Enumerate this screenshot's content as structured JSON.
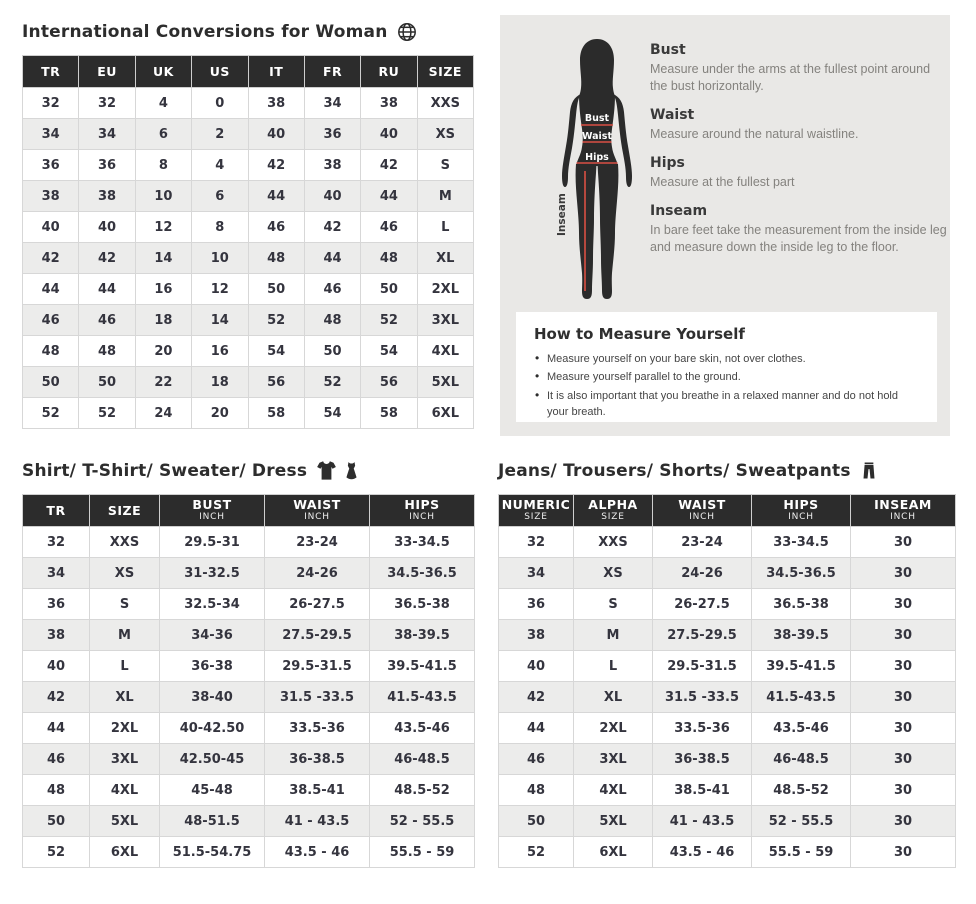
{
  "colors": {
    "header_bg": "#2c2c2c",
    "header_text": "#ffffff",
    "row_alt": "#ececeb",
    "cell_text": "#34343e",
    "panel_bg": "#e9e8e6",
    "accent_red": "#d94f44",
    "silhouette": "#2b2b2b",
    "muted_text": "#84827e"
  },
  "conversions": {
    "title": "International Conversions for Woman",
    "icon": "globe-icon",
    "headers": [
      {
        "label": "TR",
        "sub": ""
      },
      {
        "label": "EU",
        "sub": ""
      },
      {
        "label": "UK",
        "sub": ""
      },
      {
        "label": "US",
        "sub": ""
      },
      {
        "label": "IT",
        "sub": ""
      },
      {
        "label": "FR",
        "sub": ""
      },
      {
        "label": "RU",
        "sub": ""
      },
      {
        "label": "SIZE",
        "sub": ""
      }
    ],
    "rows": [
      [
        "32",
        "32",
        "4",
        "0",
        "38",
        "34",
        "38",
        "XXS"
      ],
      [
        "34",
        "34",
        "6",
        "2",
        "40",
        "36",
        "40",
        "XS"
      ],
      [
        "36",
        "36",
        "8",
        "4",
        "42",
        "38",
        "42",
        "S"
      ],
      [
        "38",
        "38",
        "10",
        "6",
        "44",
        "40",
        "44",
        "M"
      ],
      [
        "40",
        "40",
        "12",
        "8",
        "46",
        "42",
        "46",
        "L"
      ],
      [
        "42",
        "42",
        "14",
        "10",
        "48",
        "44",
        "48",
        "XL"
      ],
      [
        "44",
        "44",
        "16",
        "12",
        "50",
        "46",
        "50",
        "2XL"
      ],
      [
        "46",
        "46",
        "18",
        "14",
        "52",
        "48",
        "52",
        "3XL"
      ],
      [
        "48",
        "48",
        "20",
        "16",
        "54",
        "50",
        "54",
        "4XL"
      ],
      [
        "50",
        "50",
        "22",
        "18",
        "56",
        "52",
        "56",
        "5XL"
      ],
      [
        "52",
        "52",
        "24",
        "20",
        "58",
        "54",
        "58",
        "6XL"
      ]
    ]
  },
  "measure_panel": {
    "figure_labels": {
      "bust": "Bust",
      "waist": "Waist",
      "hips": "Hips",
      "inseam": "Inseam"
    },
    "tips": [
      {
        "title": "Bust",
        "text": "Measure under the arms at the fullest point around the bust horizontally."
      },
      {
        "title": "Waist",
        "text": "Measure around the natural waistline."
      },
      {
        "title": "Hips",
        "text": "Measure at the fullest part"
      },
      {
        "title": "Inseam",
        "text": "In bare feet take the measurement from the inside leg and measure down the inside leg to the floor."
      }
    ],
    "how_to": {
      "title": "How to Measure Yourself",
      "bullets": [
        "Measure yourself on your bare skin, not over clothes.",
        "Measure yourself parallel to the ground.",
        "It is also important that you breathe in a relaxed manner and do not hold your breath."
      ]
    }
  },
  "shirt_table": {
    "title": "Shirt/ T-Shirt/ Sweater/ Dress",
    "icons": [
      "tshirt-icon",
      "dress-icon"
    ],
    "headers": [
      {
        "label": "TR",
        "sub": ""
      },
      {
        "label": "SIZE",
        "sub": ""
      },
      {
        "label": "BUST",
        "sub": "INCH"
      },
      {
        "label": "WAIST",
        "sub": "INCH"
      },
      {
        "label": "HIPS",
        "sub": "INCH"
      }
    ],
    "rows": [
      [
        "32",
        "XXS",
        "29.5-31",
        "23-24",
        "33-34.5"
      ],
      [
        "34",
        "XS",
        "31-32.5",
        "24-26",
        "34.5-36.5"
      ],
      [
        "36",
        "S",
        "32.5-34",
        "26-27.5",
        "36.5-38"
      ],
      [
        "38",
        "M",
        "34-36",
        "27.5-29.5",
        "38-39.5"
      ],
      [
        "40",
        "L",
        "36-38",
        "29.5-31.5",
        "39.5-41.5"
      ],
      [
        "42",
        "XL",
        "38-40",
        "31.5 -33.5",
        "41.5-43.5"
      ],
      [
        "44",
        "2XL",
        "40-42.50",
        "33.5-36",
        "43.5-46"
      ],
      [
        "46",
        "3XL",
        "42.50-45",
        "36-38.5",
        "46-48.5"
      ],
      [
        "48",
        "4XL",
        "45-48",
        "38.5-41",
        "48.5-52"
      ],
      [
        "50",
        "5XL",
        "48-51.5",
        "41 - 43.5",
        "52 - 55.5"
      ],
      [
        "52",
        "6XL",
        "51.5-54.75",
        "43.5 - 46",
        "55.5 - 59"
      ]
    ]
  },
  "jeans_table": {
    "title": "Jeans/ Trousers/ Shorts/ Sweatpants",
    "icons": [
      "pants-icon"
    ],
    "headers": [
      {
        "label": "NUMERIC",
        "sub": "SIZE"
      },
      {
        "label": "ALPHA",
        "sub": "SIZE"
      },
      {
        "label": "WAIST",
        "sub": "INCH"
      },
      {
        "label": "HIPS",
        "sub": "INCH"
      },
      {
        "label": "INSEAM",
        "sub": "INCH"
      }
    ],
    "rows": [
      [
        "32",
        "XXS",
        "23-24",
        "33-34.5",
        "30"
      ],
      [
        "34",
        "XS",
        "24-26",
        "34.5-36.5",
        "30"
      ],
      [
        "36",
        "S",
        "26-27.5",
        "36.5-38",
        "30"
      ],
      [
        "38",
        "M",
        "27.5-29.5",
        "38-39.5",
        "30"
      ],
      [
        "40",
        "L",
        "29.5-31.5",
        "39.5-41.5",
        "30"
      ],
      [
        "42",
        "XL",
        "31.5 -33.5",
        "41.5-43.5",
        "30"
      ],
      [
        "44",
        "2XL",
        "33.5-36",
        "43.5-46",
        "30"
      ],
      [
        "46",
        "3XL",
        "36-38.5",
        "46-48.5",
        "30"
      ],
      [
        "48",
        "4XL",
        "38.5-41",
        "48.5-52",
        "30"
      ],
      [
        "50",
        "5XL",
        "41 - 43.5",
        "52 - 55.5",
        "30"
      ],
      [
        "52",
        "6XL",
        "43.5 - 46",
        "55.5 - 59",
        "30"
      ]
    ]
  }
}
